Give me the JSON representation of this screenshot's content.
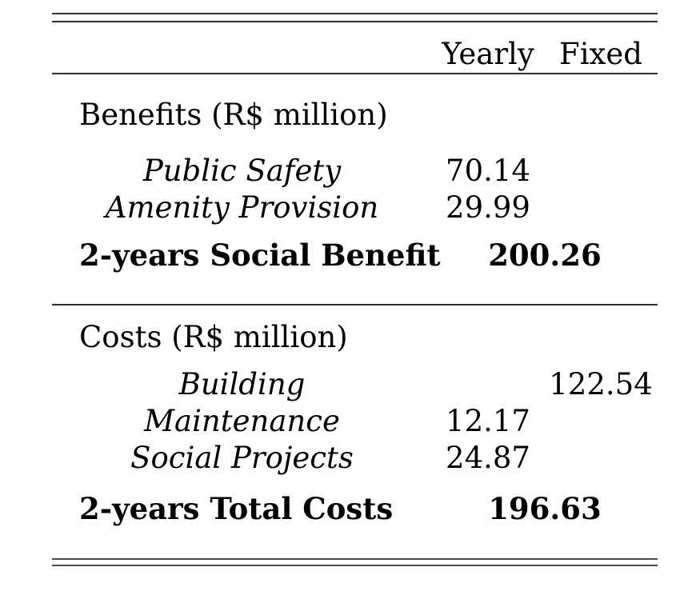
{
  "table": {
    "header": {
      "yearly": "Yearly",
      "fixed": "Fixed"
    },
    "benefits": {
      "section_label": "Benefits (R$ million)",
      "items": [
        {
          "label": "Public Safety",
          "yearly": "70.14",
          "fixed": ""
        },
        {
          "label": "Amenity Provision",
          "yearly": "29.99",
          "fixed": ""
        }
      ],
      "summary": {
        "label": "2-years Social Benefit",
        "value": "200.26"
      }
    },
    "costs": {
      "section_label": "Costs (R$ million)",
      "items": [
        {
          "label": "Building",
          "yearly": "",
          "fixed": "122.54"
        },
        {
          "label": "Maintenance",
          "yearly": "12.17",
          "fixed": ""
        },
        {
          "label": "Social Projects",
          "yearly": "24.87",
          "fixed": ""
        }
      ],
      "summary": {
        "label": "2-years Total Costs",
        "value": "196.63"
      }
    }
  }
}
